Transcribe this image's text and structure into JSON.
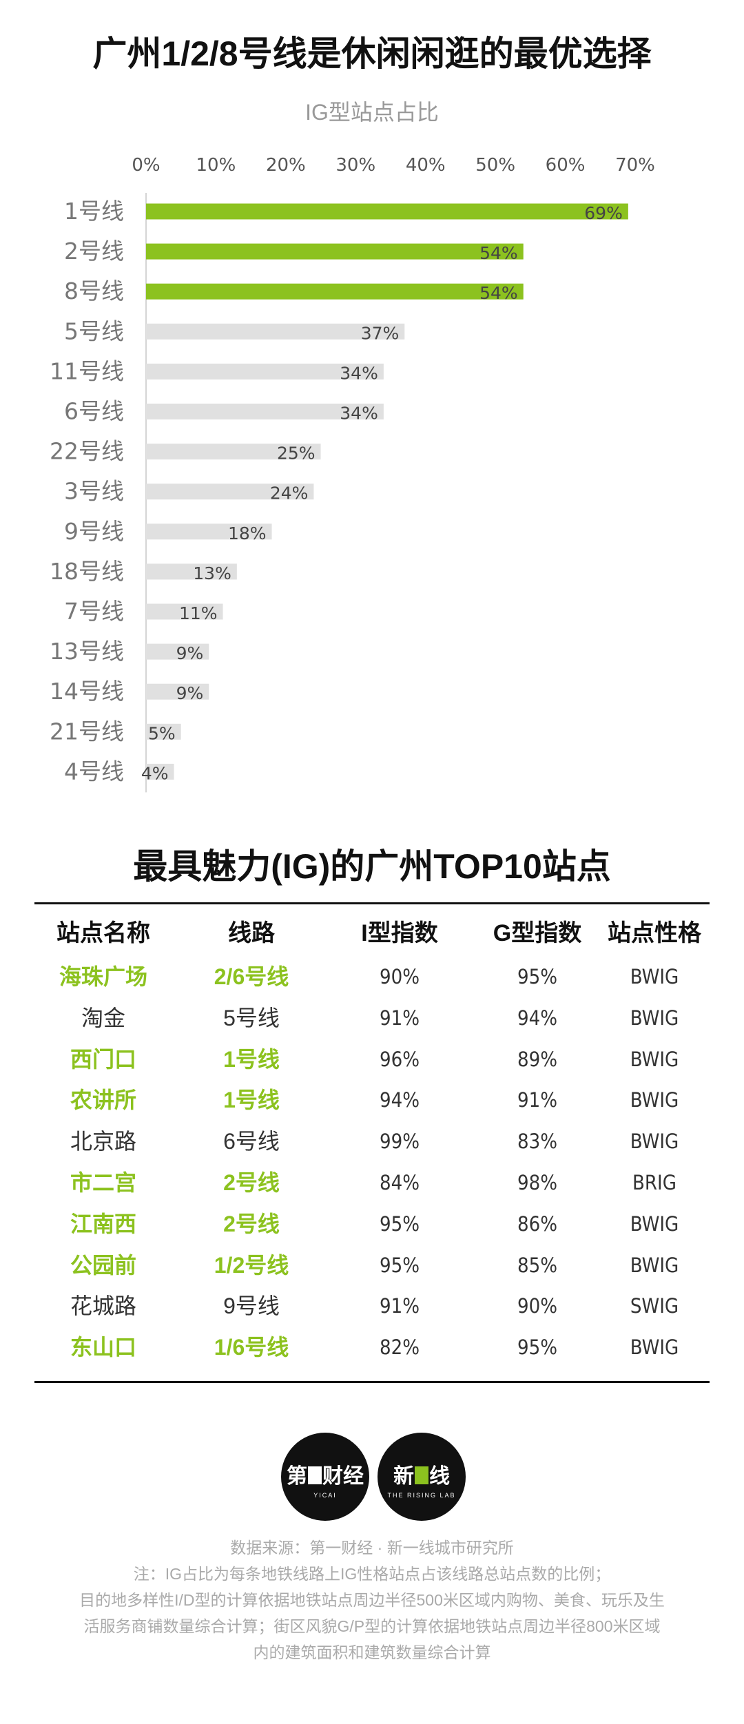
{
  "title": "广州1/2/8号线是休闲闲逛的最优选择",
  "subtitle": "IG型站点占比",
  "colors": {
    "accent": "#8cc21f",
    "bar_default": "#e0e0e0"
  },
  "chart_data": {
    "type": "bar",
    "orientation": "horizontal",
    "title": "广州1/2/8号线是休闲闲逛的最优选择",
    "subtitle": "IG型站点占比",
    "xlim": [
      0,
      70
    ],
    "xticks": [
      "0%",
      "10%",
      "20%",
      "30%",
      "40%",
      "50%",
      "60%",
      "70%"
    ],
    "categories": [
      "1号线",
      "2号线",
      "8号线",
      "5号线",
      "11号线",
      "6号线",
      "22号线",
      "3号线",
      "9号线",
      "18号线",
      "7号线",
      "13号线",
      "14号线",
      "21号线",
      "4号线"
    ],
    "values": [
      69,
      54,
      54,
      37,
      34,
      34,
      25,
      24,
      18,
      13,
      11,
      9,
      9,
      5,
      4
    ],
    "labels": [
      "69%",
      "54%",
      "54%",
      "37%",
      "34%",
      "34%",
      "25%",
      "24%",
      "18%",
      "13%",
      "11%",
      "9%",
      "9%",
      "5%",
      "4%"
    ],
    "highlighted": [
      true,
      true,
      true,
      false,
      false,
      false,
      false,
      false,
      false,
      false,
      false,
      false,
      false,
      false,
      false
    ],
    "grid": false,
    "legend": "none"
  },
  "table": {
    "title": "最具魅力(IG)的广州TOP10站点",
    "headers": [
      "站点名称",
      "线路",
      "I型指数",
      "G型指数",
      "站点性格"
    ],
    "rows": [
      {
        "name": "海珠广场",
        "line": "2/6号线",
        "i": "90%",
        "g": "95%",
        "type": "BWIG",
        "hl": true
      },
      {
        "name": "淘金",
        "line": "5号线",
        "i": "91%",
        "g": "94%",
        "type": "BWIG",
        "hl": false
      },
      {
        "name": "西门口",
        "line": "1号线",
        "i": "96%",
        "g": "89%",
        "type": "BWIG",
        "hl": true
      },
      {
        "name": "农讲所",
        "line": "1号线",
        "i": "94%",
        "g": "91%",
        "type": "BWIG",
        "hl": true
      },
      {
        "name": "北京路",
        "line": "6号线",
        "i": "99%",
        "g": "83%",
        "type": "BWIG",
        "hl": false
      },
      {
        "name": "市二宫",
        "line": "2号线",
        "i": "84%",
        "g": "98%",
        "type": "BRIG",
        "hl": true
      },
      {
        "name": "江南西",
        "line": "2号线",
        "i": "95%",
        "g": "86%",
        "type": "BWIG",
        "hl": true
      },
      {
        "name": "公园前",
        "line": "1/2号线",
        "i": "95%",
        "g": "85%",
        "type": "BWIG",
        "hl": true
      },
      {
        "name": "花城路",
        "line": "9号线",
        "i": "91%",
        "g": "90%",
        "type": "SWIG",
        "hl": false
      },
      {
        "name": "东山口",
        "line": "1/6号线",
        "i": "82%",
        "g": "95%",
        "type": "BWIG",
        "hl": true
      }
    ]
  },
  "logos": {
    "logo1": {
      "text_a": "第",
      "text_b": "财经",
      "sub": "YICAI",
      "icon": "yicai-logo"
    },
    "logo2": {
      "text_a": "新",
      "text_b": "线",
      "sub": "THE RISING LAB",
      "icon": "rising-lab-logo"
    }
  },
  "footer": {
    "source": "数据来源：第一财经 · 新一线城市研究所",
    "note1": "注：IG占比为每条地铁线路上IG性格站点占该线路总站点数的比例；",
    "note2": "目的地多样性I/D型的计算依据地铁站点周边半径500米区域内购物、美食、玩乐及生",
    "note3": "活服务商铺数量综合计算；街区风貌G/P型的计算依据地铁站点周边半径800米区域",
    "note4": "内的建筑面积和建筑数量综合计算"
  }
}
